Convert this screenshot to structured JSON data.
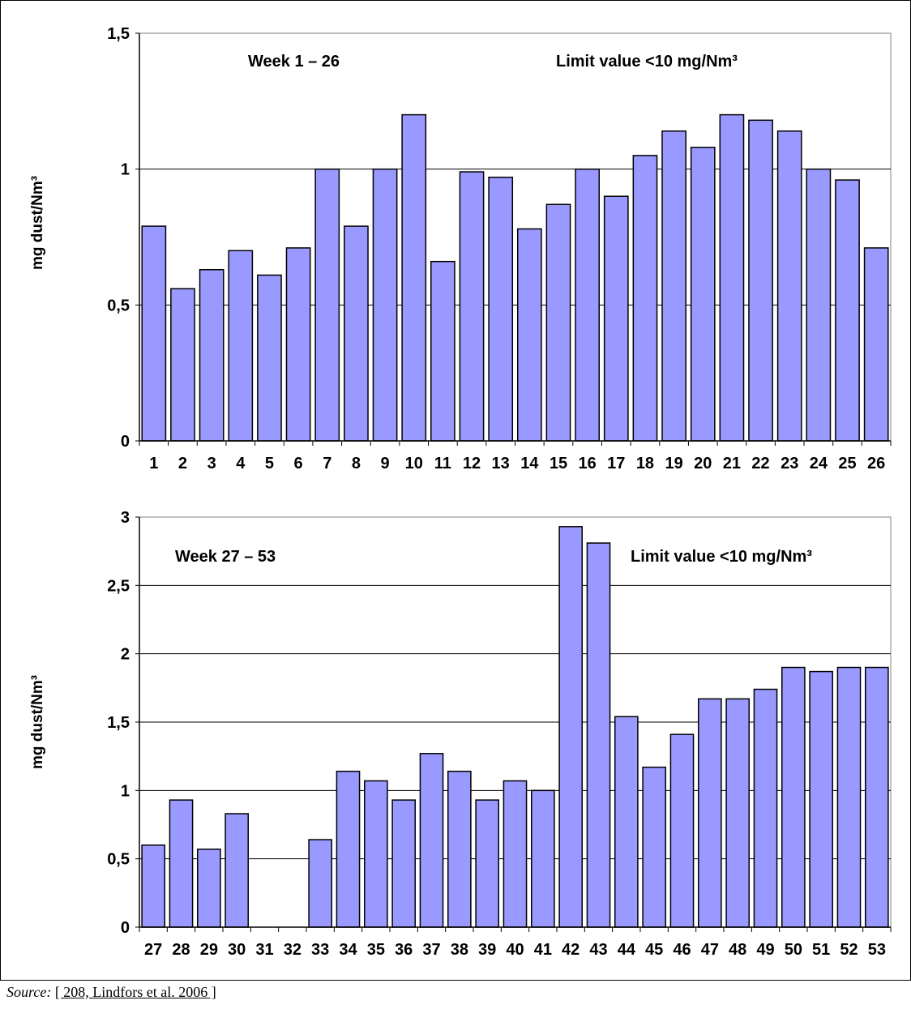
{
  "colors": {
    "bar_fill": "#9999ff",
    "bar_stroke": "#000000",
    "grid": "#000000",
    "plot_border": "#808080"
  },
  "source": {
    "label": "Source:",
    "reference": "[ 208, Lindfors et al. 2006 ]"
  },
  "chart_data": [
    {
      "type": "bar",
      "annotations": [
        "Week 1 – 26",
        "Limit value <10 mg/Nm³"
      ],
      "ylabel": "mg dust/Nm³",
      "ylim": [
        0,
        1.5
      ],
      "yticks": [
        "0",
        "0,5",
        "1",
        "1,5"
      ],
      "ytick_values": [
        0,
        0.5,
        1,
        1.5
      ],
      "grid": true,
      "categories": [
        "1",
        "2",
        "3",
        "4",
        "5",
        "6",
        "7",
        "8",
        "9",
        "10",
        "11",
        "12",
        "13",
        "14",
        "15",
        "16",
        "17",
        "18",
        "19",
        "20",
        "21",
        "22",
        "23",
        "24",
        "25",
        "26"
      ],
      "values": [
        0.79,
        0.56,
        0.63,
        0.7,
        0.61,
        0.71,
        1.0,
        0.79,
        1.0,
        1.2,
        0.66,
        0.99,
        0.97,
        0.78,
        0.87,
        1.0,
        0.9,
        1.05,
        1.14,
        1.08,
        1.2,
        1.18,
        1.14,
        1.0,
        0.96,
        0.71
      ]
    },
    {
      "type": "bar",
      "annotations": [
        "Week 27 – 53",
        "Limit value <10 mg/Nm³"
      ],
      "ylabel": "mg dust/Nm³",
      "ylim": [
        0,
        3
      ],
      "yticks": [
        "0",
        "0,5",
        "1",
        "1,5",
        "2",
        "2,5",
        "3"
      ],
      "ytick_values": [
        0,
        0.5,
        1,
        1.5,
        2,
        2.5,
        3
      ],
      "grid": true,
      "categories": [
        "27",
        "28",
        "29",
        "30",
        "31",
        "32",
        "33",
        "34",
        "35",
        "36",
        "37",
        "38",
        "39",
        "40",
        "41",
        "42",
        "43",
        "44",
        "45",
        "46",
        "47",
        "48",
        "49",
        "50",
        "51",
        "52",
        "53"
      ],
      "values": [
        0.6,
        0.93,
        0.57,
        0.83,
        null,
        null,
        0.64,
        1.14,
        1.07,
        0.93,
        1.27,
        1.14,
        0.93,
        1.07,
        1.0,
        2.93,
        2.81,
        1.54,
        1.17,
        1.41,
        1.67,
        1.67,
        1.74,
        1.9,
        1.87,
        1.9,
        1.9
      ]
    }
  ]
}
